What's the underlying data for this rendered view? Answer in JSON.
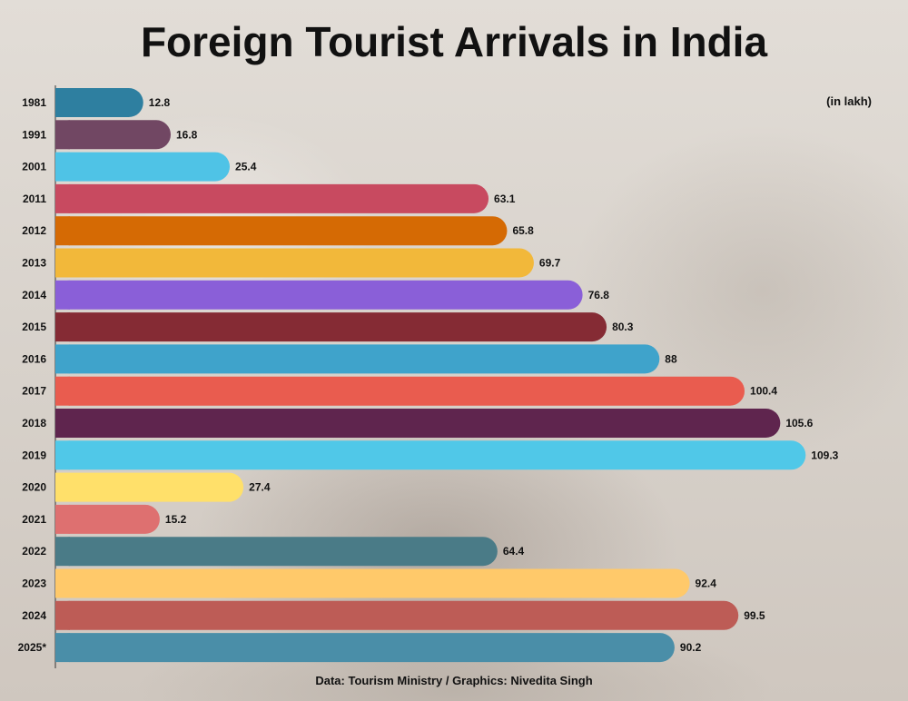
{
  "chart_data": {
    "type": "bar",
    "orientation": "horizontal",
    "title": "Foreign Tourist Arrivals in India",
    "unit_note": "(in lakh)",
    "source": "Data: Tourism Ministry / Graphics: Nivedita Singh",
    "categories": [
      "1981",
      "1991",
      "2001",
      "2011",
      "2012",
      "2013",
      "2014",
      "2015",
      "2016",
      "2017",
      "2018",
      "2019",
      "2020",
      "2021",
      "2022",
      "2023",
      "2024",
      "2025*"
    ],
    "values": [
      12.8,
      16.8,
      25.4,
      63.1,
      65.8,
      69.7,
      76.8,
      80.3,
      88,
      100.4,
      105.6,
      109.3,
      27.4,
      15.2,
      64.4,
      92.4,
      99.5,
      90.2
    ],
    "value_labels": [
      "12.8",
      "16.8",
      "25.4",
      "63.1",
      "65.8",
      "69.7",
      "76.8",
      "80.3",
      "88",
      "100.4",
      "105.6",
      "109.3",
      "27.4",
      "15.2",
      "64.4",
      "92.4",
      "99.5",
      "90.2"
    ],
    "colors": [
      "#2e7fa0",
      "#714763",
      "#4fc3e6",
      "#c84a60",
      "#d56a04",
      "#f2b83a",
      "#8a5fd8",
      "#852b34",
      "#3fa3cb",
      "#e95c4f",
      "#5f254e",
      "#50c8e8",
      "#ffe06a",
      "#de7070",
      "#4a7b87",
      "#ffc96a",
      "#bd5c56",
      "#4a8ea8"
    ],
    "xlim": [
      0,
      112
    ],
    "grid": false,
    "legend": "none"
  }
}
